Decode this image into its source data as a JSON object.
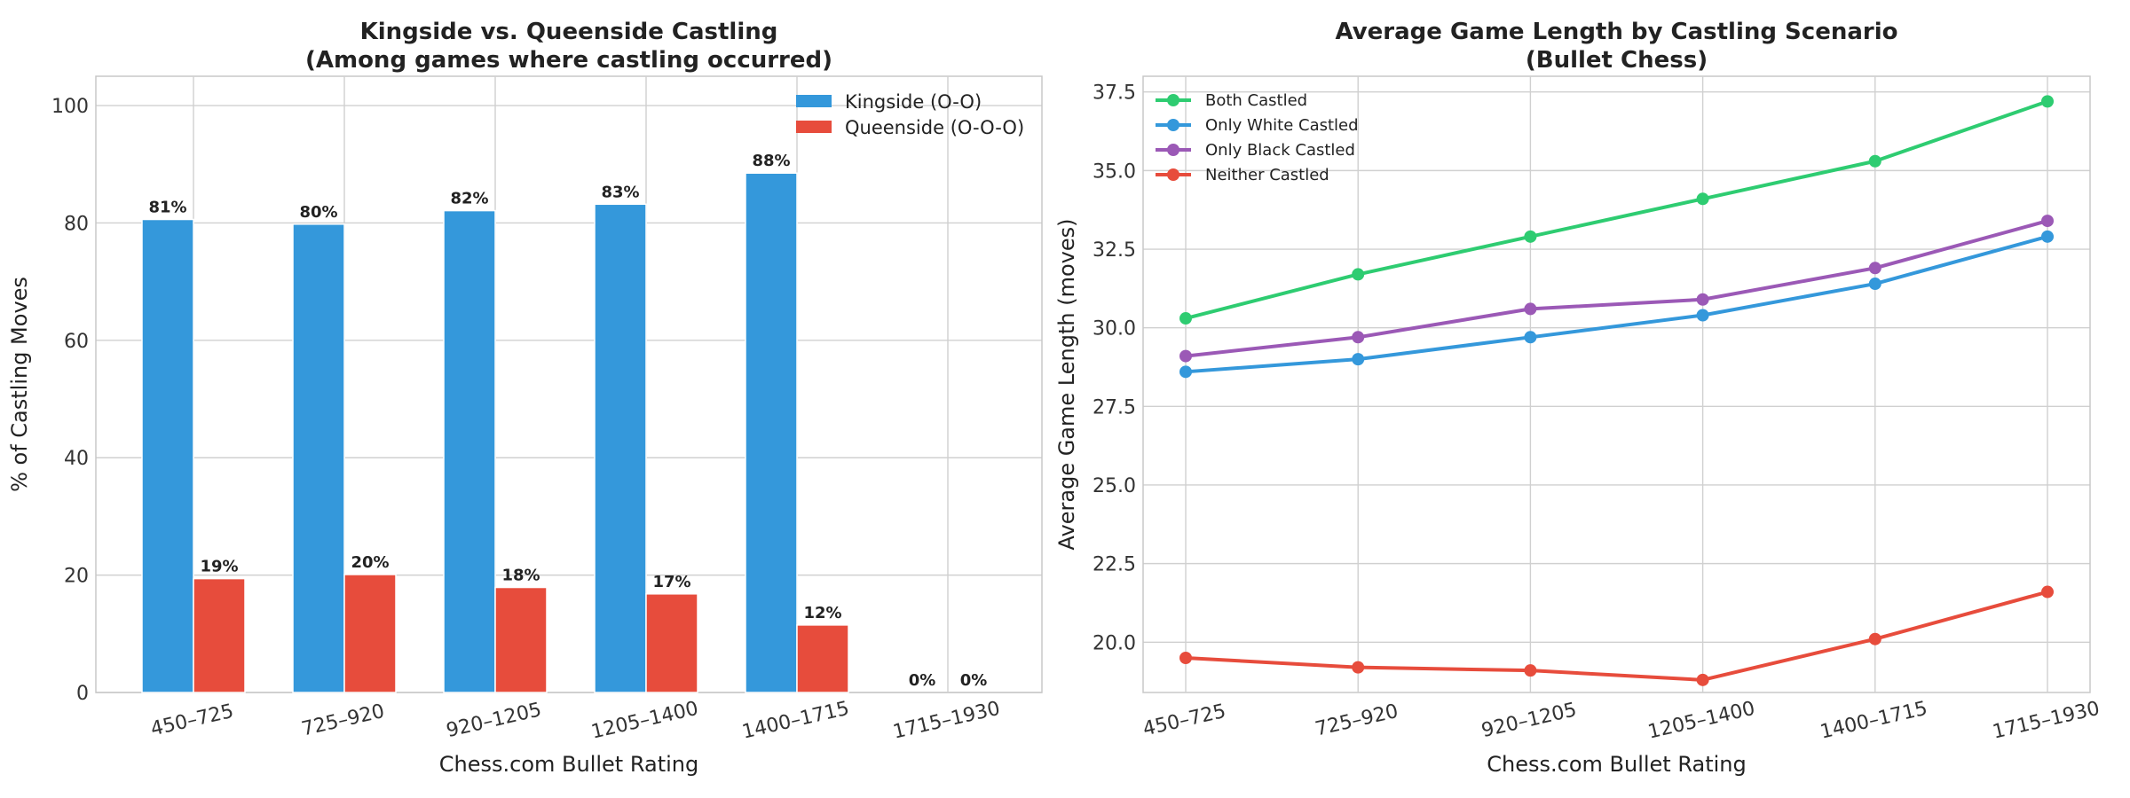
{
  "chart_data": [
    {
      "type": "bar",
      "title": [
        "Kingside vs. Queenside Castling",
        "(Among games where castling occurred)"
      ],
      "xlabel": "Chess.com Bullet Rating",
      "ylabel": "% of Castling Moves",
      "categories": [
        "450–725",
        "725–920",
        "920–1205",
        "1205–1400",
        "1400–1715",
        "1715–1930"
      ],
      "series": [
        {
          "name": "Kingside (O-O)",
          "color": "#3498db",
          "values": [
            80.6,
            79.8,
            82.1,
            83.2,
            88.5,
            0
          ],
          "labels": [
            "81%",
            "80%",
            "82%",
            "83%",
            "88%",
            "0%"
          ]
        },
        {
          "name": "Queenside (O-O-O)",
          "color": "#e74c3c",
          "values": [
            19.4,
            20.1,
            17.9,
            16.8,
            11.5,
            0
          ],
          "labels": [
            "19%",
            "20%",
            "18%",
            "17%",
            "12%",
            "0%"
          ]
        }
      ],
      "ylim": [
        0,
        105
      ],
      "yticks": [
        0,
        20,
        40,
        60,
        80,
        100
      ],
      "grid": true,
      "legend": "top-right"
    },
    {
      "type": "line",
      "title": [
        "Average Game Length by Castling Scenario",
        "(Bullet Chess)"
      ],
      "xlabel": "Chess.com Bullet Rating",
      "ylabel": "Average Game Length (moves)",
      "categories": [
        "450–725",
        "725–920",
        "920–1205",
        "1205–1400",
        "1400–1715",
        "1715–1930"
      ],
      "series": [
        {
          "name": "Both Castled",
          "color": "#2ecc71",
          "values": [
            30.3,
            31.7,
            32.9,
            34.1,
            35.3,
            37.2
          ]
        },
        {
          "name": "Only White Castled",
          "color": "#3498db",
          "values": [
            28.6,
            29.0,
            29.7,
            30.4,
            31.4,
            32.9
          ]
        },
        {
          "name": "Only Black Castled",
          "color": "#9b59b6",
          "values": [
            29.1,
            29.7,
            30.6,
            30.9,
            31.9,
            33.4
          ]
        },
        {
          "name": "Neither Castled",
          "color": "#e74c3c",
          "values": [
            19.5,
            19.2,
            19.1,
            18.8,
            20.1,
            21.6
          ]
        }
      ],
      "ylim": [
        18.4,
        38.0
      ],
      "yticks": [
        20.0,
        22.5,
        25.0,
        27.5,
        30.0,
        32.5,
        35.0,
        37.5
      ],
      "grid": true,
      "legend": "top-left"
    }
  ]
}
